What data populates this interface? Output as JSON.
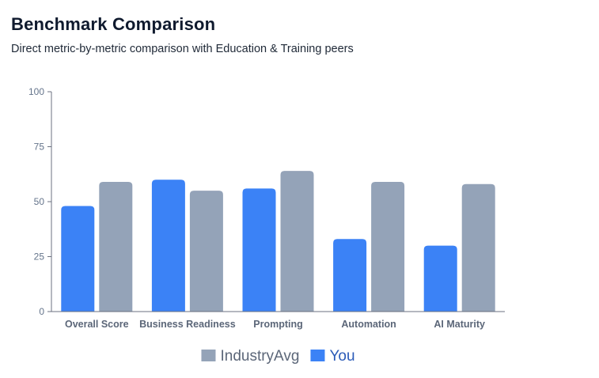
{
  "header": {
    "title": "Benchmark Comparison",
    "subtitle": "Direct metric-by-metric comparison with Education & Training peers"
  },
  "chart_data": {
    "type": "bar",
    "categories": [
      "Overall Score",
      "Business Readiness",
      "Prompting",
      "Automation",
      "AI Maturity"
    ],
    "series": [
      {
        "name": "You",
        "values": [
          48,
          60,
          56,
          33,
          30
        ],
        "color": "#3b82f6",
        "label_color": "#2b5bb8"
      },
      {
        "name": "IndustryAvg",
        "values": [
          59,
          55,
          64,
          59,
          58
        ],
        "color": "#94a3b8",
        "label_color": "#5b6678"
      }
    ],
    "legend_order": [
      "IndustryAvg",
      "You"
    ],
    "ylim": [
      0,
      100
    ],
    "yticks": [
      0,
      25,
      50,
      75,
      100
    ],
    "grid": false,
    "legend_position": "bottom-center"
  }
}
